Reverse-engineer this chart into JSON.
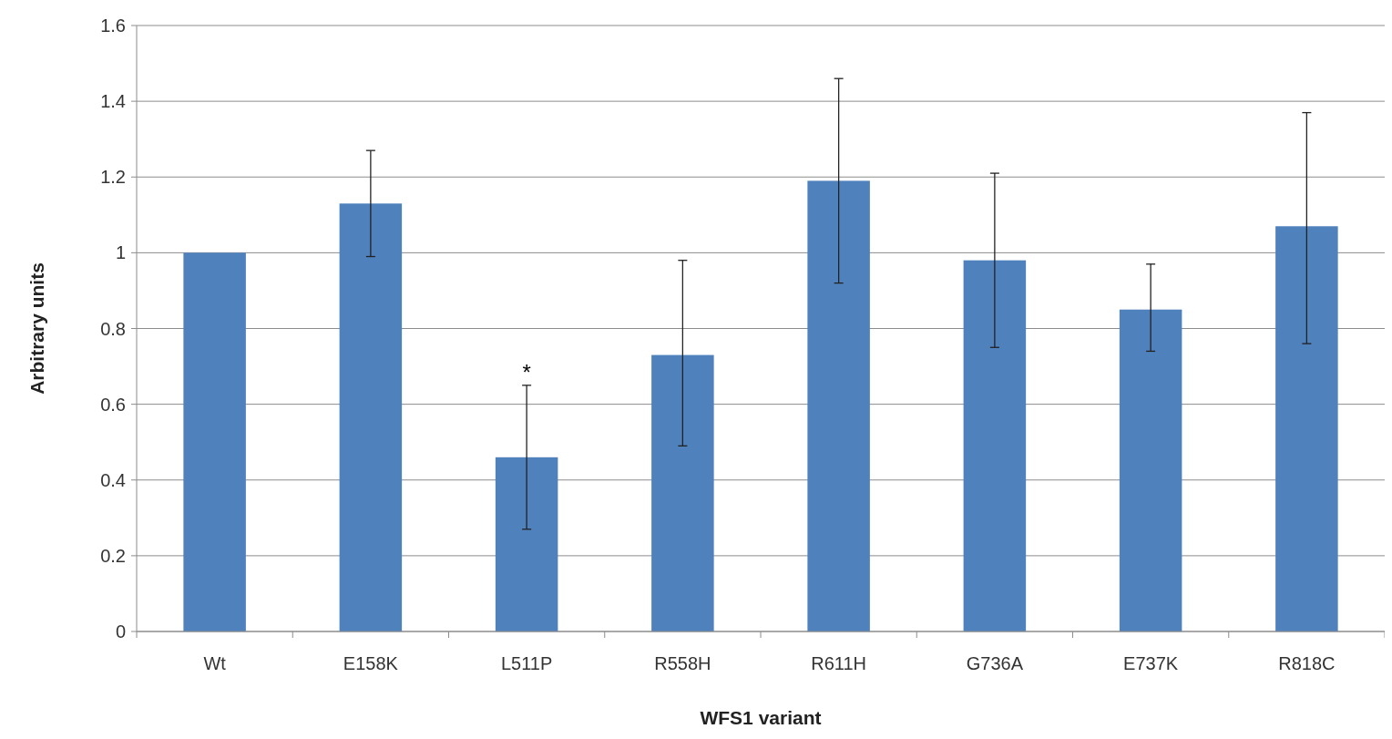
{
  "chart_data": {
    "type": "bar",
    "xlabel": "WFS1 variant",
    "ylabel": "Arbitrary units",
    "categories": [
      "Wt",
      "E158K",
      "L511P",
      "R558H",
      "R611H",
      "G736A",
      "E737K",
      "R818C"
    ],
    "values": [
      1.0,
      1.13,
      0.46,
      0.73,
      1.19,
      0.98,
      0.85,
      1.07
    ],
    "errors": [
      null,
      [
        0.99,
        1.27
      ],
      [
        0.27,
        0.65
      ],
      [
        0.49,
        0.98
      ],
      [
        0.92,
        1.46
      ],
      [
        0.75,
        1.21
      ],
      [
        0.74,
        0.97
      ],
      [
        0.76,
        1.37
      ]
    ],
    "color": "#4f81bd",
    "ylim": [
      0,
      1.6
    ],
    "yticks": [
      0,
      0.2,
      0.4,
      0.6,
      0.8,
      1,
      1.2,
      1.4,
      1.6
    ],
    "grid": "y",
    "annotations": [
      {
        "text": "*",
        "x": "L511P",
        "y": 0.65
      }
    ]
  }
}
